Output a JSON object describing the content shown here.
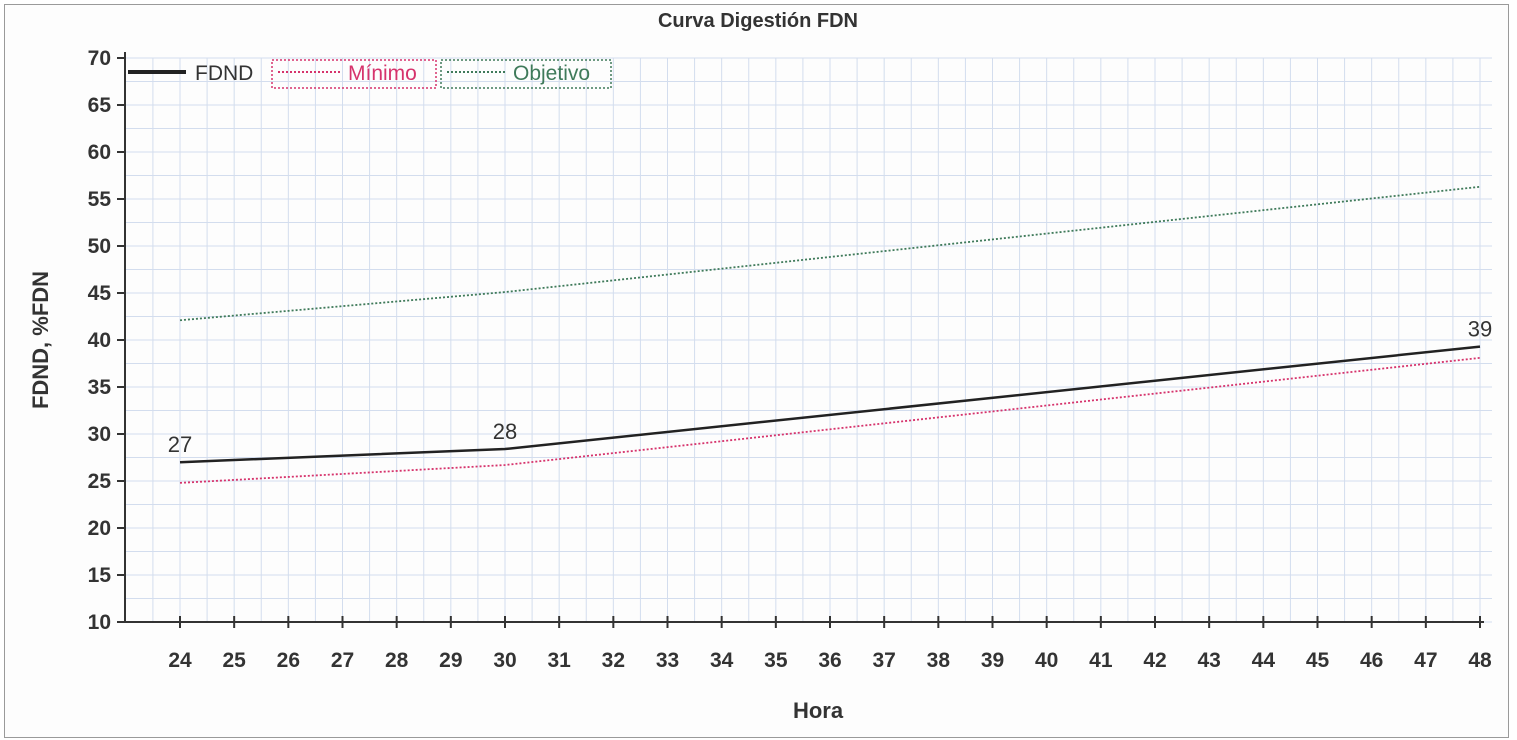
{
  "chart_data": {
    "type": "line",
    "title": "Curva Digestión FDN",
    "xlabel": "Hora",
    "ylabel": "FDND, %FDN",
    "xlim": [
      24,
      48
    ],
    "ylim": [
      10,
      70
    ],
    "x_ticks": [
      24,
      25,
      26,
      27,
      28,
      29,
      30,
      31,
      32,
      33,
      34,
      35,
      36,
      37,
      38,
      39,
      40,
      41,
      42,
      43,
      44,
      45,
      46,
      47,
      48
    ],
    "y_ticks": [
      10,
      15,
      20,
      25,
      30,
      35,
      40,
      45,
      50,
      55,
      60,
      65,
      70
    ],
    "grid": true,
    "legend_position": "top-left",
    "series": [
      {
        "name": "FDND",
        "color": "#222222",
        "style": "solid",
        "x": [
          24,
          30,
          48
        ],
        "y": [
          27,
          28.4,
          39.3
        ],
        "data_labels": [
          "27",
          "28",
          "39"
        ]
      },
      {
        "name": "Mínimo",
        "color": "#d6336c",
        "style": "dotted",
        "x": [
          24,
          30,
          48
        ],
        "y": [
          24.8,
          26.7,
          38.1
        ]
      },
      {
        "name": "Objetivo",
        "color": "#3f7a5a",
        "style": "dotted",
        "x": [
          24,
          30,
          48
        ],
        "y": [
          42.1,
          45.1,
          56.3
        ]
      }
    ]
  }
}
